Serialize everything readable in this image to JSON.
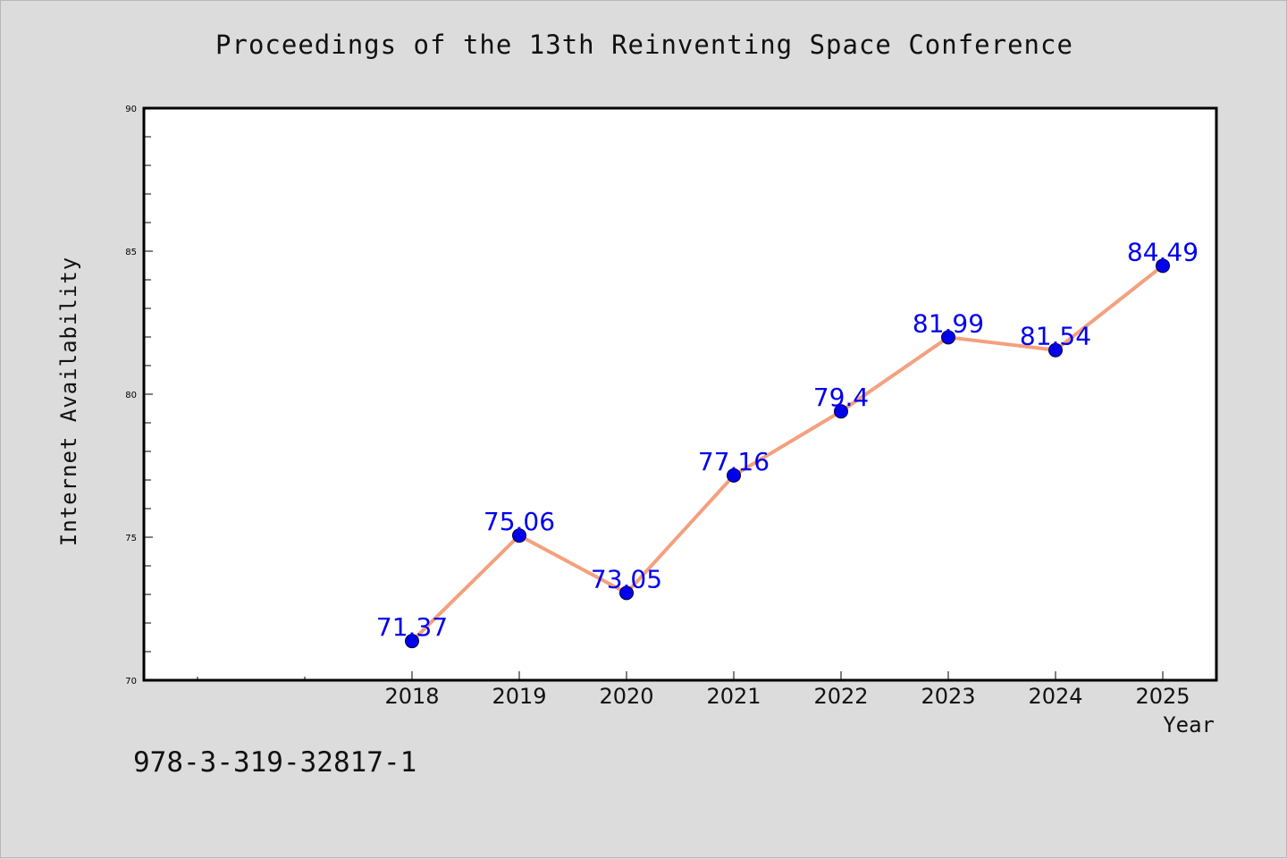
{
  "chart_data": {
    "type": "line",
    "title": "Proceedings of the 13th Reinventing Space Conference",
    "xlabel": "Year",
    "ylabel": "Internet Availability",
    "categories": [
      "2018",
      "2019",
      "2020",
      "2021",
      "2022",
      "2023",
      "2024",
      "2025"
    ],
    "series": [
      {
        "values": [
          71.37,
          75.06,
          73.05,
          77.16,
          79.4,
          81.99,
          81.54,
          84.49
        ],
        "data_labels": [
          "71.37",
          "75.06",
          "73.05",
          "77.16",
          "79.4",
          "81.99",
          "81.54",
          "84.49"
        ],
        "line_color": "#f4a07e",
        "marker_color": "#0000ee",
        "label_color": "#0000ee"
      }
    ],
    "ylim": [
      70,
      90
    ],
    "yticks": [
      "70",
      "75",
      "80",
      "85",
      "90"
    ],
    "grid": false,
    "legend": "none"
  },
  "footer_text": "978-3-319-32817-1"
}
